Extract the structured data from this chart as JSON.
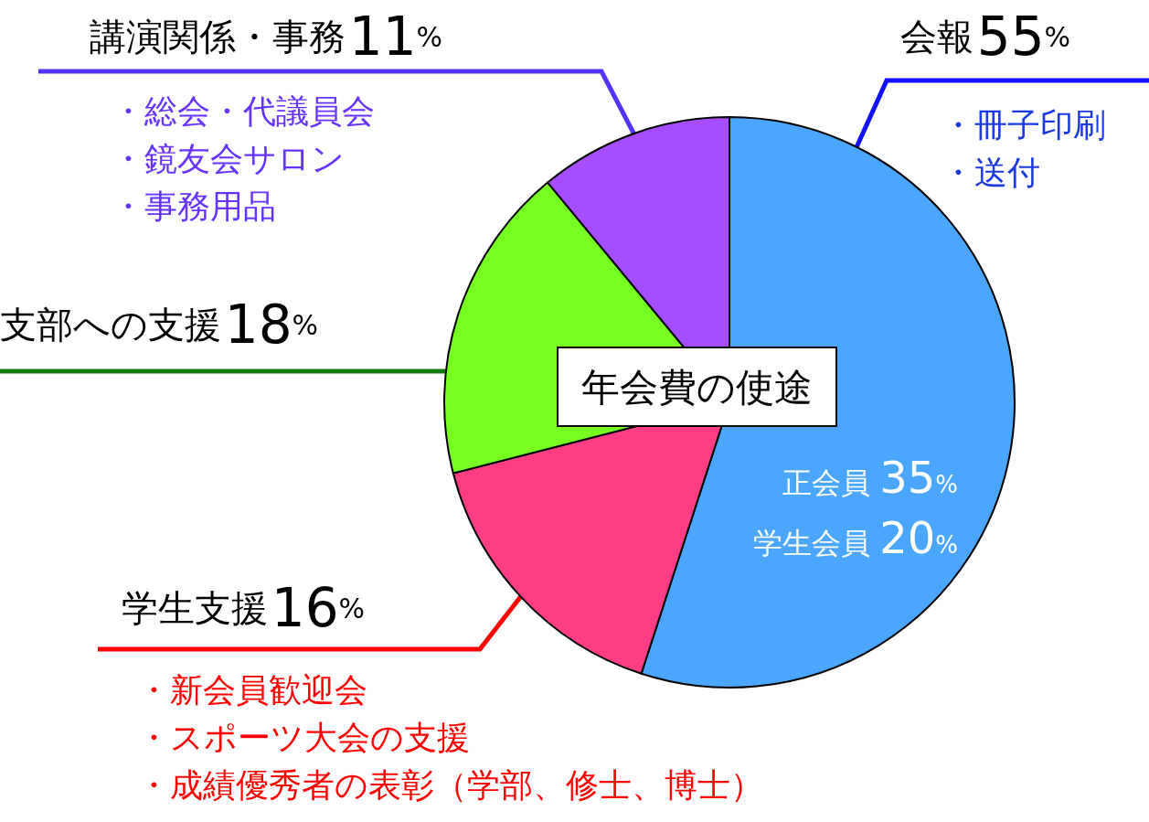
{
  "chart_data": {
    "type": "pie",
    "title": "年会費の使途",
    "categories": [
      "会報",
      "学生支援",
      "支部への支援",
      "講演関係・事務"
    ],
    "values": [
      55,
      16,
      18,
      11
    ],
    "colors": [
      "#4aa6ff",
      "#ff3d85",
      "#77ff22",
      "#a64dff"
    ],
    "value_labels": [
      "55%",
      "16%",
      "18%",
      "11%"
    ],
    "legend": false,
    "annotations": [
      "・冊子印刷",
      "・送付",
      "・新会員歓迎会",
      "・スポーツ大会の支援",
      "・成績優秀者の表彰（学部、修士、博士）",
      "・総会・代議員会",
      "・鏡友会サロン",
      "・事務用品",
      "正会員 35%",
      "学生会員 20%"
    ]
  }
}
